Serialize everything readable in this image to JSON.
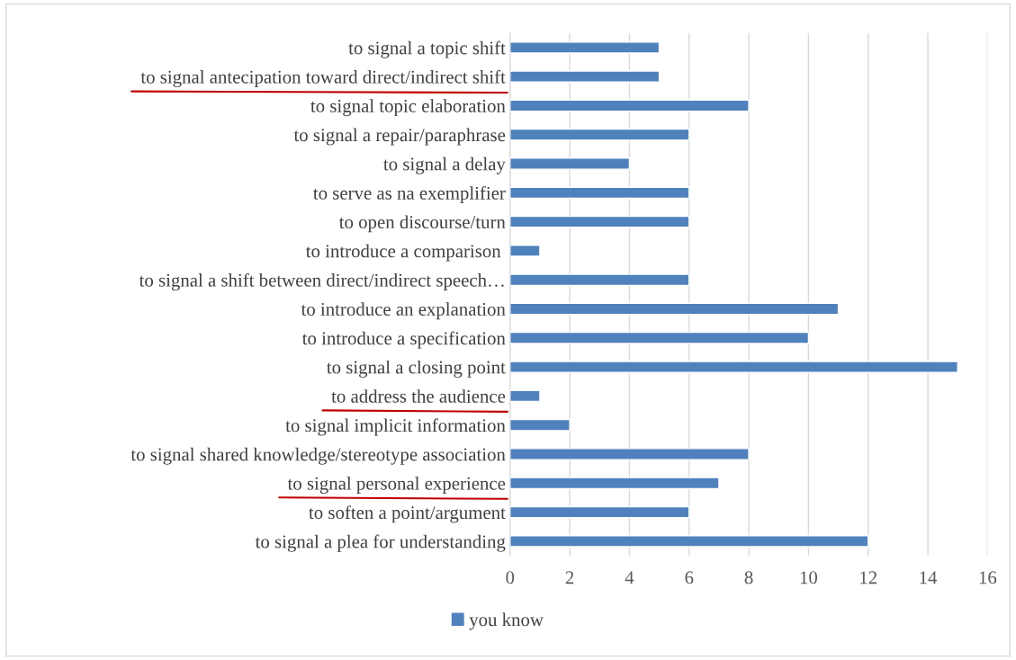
{
  "chart_data": {
    "type": "bar",
    "orientation": "horizontal",
    "categories": [
      "to signal a topic shift",
      "to signal antecipation toward direct/indirect shift",
      "to signal topic elaboration",
      "to signal a repair/paraphrase",
      "to signal a delay",
      "to serve as na exemplifier",
      "to open discourse/turn",
      "to introduce a comparison ",
      "to signal a shift between direct/indirect speech…",
      "to introduce an explanation",
      "to introduce a specification",
      "to signal a closing point",
      "to address the audience",
      "to signal implicit information",
      "to signal shared knowledge/stereotype association",
      "to signal personal experience",
      "to soften a point/argument",
      "to signal a plea for understanding"
    ],
    "series": [
      {
        "name": "you know",
        "color": "#4f81bd",
        "values": [
          5,
          5,
          8,
          6,
          4,
          6,
          6,
          1,
          6,
          11,
          10,
          15,
          1,
          2,
          8,
          7,
          6,
          12
        ]
      }
    ],
    "xlim": [
      0,
      16
    ],
    "xticks": [
      0,
      2,
      4,
      6,
      8,
      10,
      12,
      14,
      16
    ],
    "grid": "x",
    "legend": "bottom"
  }
}
